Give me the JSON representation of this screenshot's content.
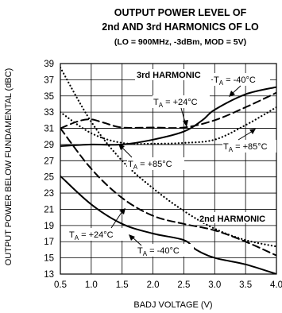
{
  "chart_data": {
    "type": "line",
    "title_line1": "OUTPUT POWER LEVEL OF",
    "title_line2": "2nd AND 3rd HARMONICS OF LO",
    "subtitle": "(LO = 900MHz, -3dBm, MOD = 5V)",
    "xlabel": "BADJ VOLTAGE (V)",
    "ylabel": "OUTPUT POWER BELOW FUNDAMENTAL (dBC)",
    "xlim": [
      0.5,
      4.0
    ],
    "ylim": [
      13,
      39
    ],
    "x_ticks": [
      0.5,
      1.0,
      1.5,
      2.0,
      2.5,
      3.0,
      3.5,
      4.0
    ],
    "x_tick_labels": [
      "0.5",
      "1.0",
      "1.5",
      "2.0",
      "2.5",
      "3.0",
      "3.5",
      "4.0"
    ],
    "y_ticks": [
      13,
      15,
      17,
      19,
      21,
      23,
      25,
      27,
      29,
      31,
      33,
      35,
      37,
      39
    ],
    "y_tick_labels": [
      "13",
      "15",
      "17",
      "19",
      "21",
      "23",
      "25",
      "27",
      "29",
      "31",
      "33",
      "35",
      "37",
      "39"
    ],
    "grid": true,
    "series": [
      {
        "group": "3rd HARMONIC",
        "temperature": "TA = -40°C",
        "style": "solid",
        "x": [
          0.5,
          1.0,
          1.5,
          2.0,
          2.5,
          2.8,
          3.0,
          3.5,
          4.0
        ],
        "y": [
          28.8,
          29.0,
          29.0,
          29.6,
          30.6,
          32.0,
          33.3,
          35.2,
          36.1
        ]
      },
      {
        "group": "3rd HARMONIC",
        "temperature": "TA = +24°C",
        "style": "dashed",
        "x": [
          0.5,
          0.8,
          1.0,
          1.2,
          1.5,
          2.0,
          2.5,
          3.0,
          3.5,
          4.0
        ],
        "y": [
          31.0,
          31.9,
          32.1,
          31.7,
          31.1,
          31.1,
          31.1,
          32.0,
          33.6,
          35.4
        ]
      },
      {
        "group": "3rd HARMONIC",
        "temperature": "TA = +85°C",
        "style": "dotted",
        "x": [
          0.5,
          1.0,
          1.5,
          2.0,
          2.5,
          3.0,
          3.5,
          4.0
        ],
        "y": [
          33.0,
          30.4,
          29.2,
          29.1,
          29.2,
          29.6,
          31.4,
          33.6
        ]
      },
      {
        "group": "2nd HARMONIC",
        "temperature": "TA = +85°C",
        "style": "dotted",
        "x": [
          0.5,
          1.0,
          1.5,
          2.0,
          2.5,
          3.0,
          3.5,
          4.0
        ],
        "y": [
          38.5,
          31.8,
          27.0,
          23.6,
          20.8,
          18.6,
          17.2,
          16.4
        ]
      },
      {
        "group": "2nd HARMONIC",
        "temperature": "TA = +24°C",
        "style": "dashed",
        "x": [
          0.5,
          1.0,
          1.5,
          2.0,
          2.5,
          3.0,
          3.5,
          4.0
        ],
        "y": [
          31.0,
          26.0,
          22.4,
          20.2,
          19.2,
          18.4,
          17.0,
          15.3
        ]
      },
      {
        "group": "2nd HARMONIC",
        "temperature": "TA = -40°C",
        "style": "solid",
        "x": [
          0.5,
          1.0,
          1.5,
          2.0,
          2.5,
          2.7,
          3.0,
          3.5,
          4.0
        ],
        "y": [
          25.1,
          21.6,
          19.2,
          18.0,
          17.2,
          16.0,
          15.0,
          14.2,
          13.0
        ]
      }
    ],
    "annotations": {
      "third_harmonic": "3rd HARMONIC",
      "second_harmonic": "2nd HARMONIC",
      "t_minus40_a": "T",
      "t_minus40_a_sub": "A",
      "t_minus40_a_rest": " = -40°C",
      "t_plus24_a": "T",
      "t_plus24_a_sub": "A",
      "t_plus24_a_rest": " = +24°C",
      "t_plus85_a": "T",
      "t_plus85_a_sub": "A",
      "t_plus85_a_rest": " = +85°C",
      "t_plus85_b": "T",
      "t_plus85_b_sub": "A",
      "t_plus85_b_rest": " = +85°C",
      "t_plus24_b": "T",
      "t_plus24_b_sub": "A",
      "t_plus24_b_rest": " = +24°C",
      "t_minus40_b": "T",
      "t_minus40_b_sub": "A",
      "t_minus40_b_rest": " = -40°C"
    },
    "line_color": "#000000",
    "grid_color": "#000000"
  }
}
